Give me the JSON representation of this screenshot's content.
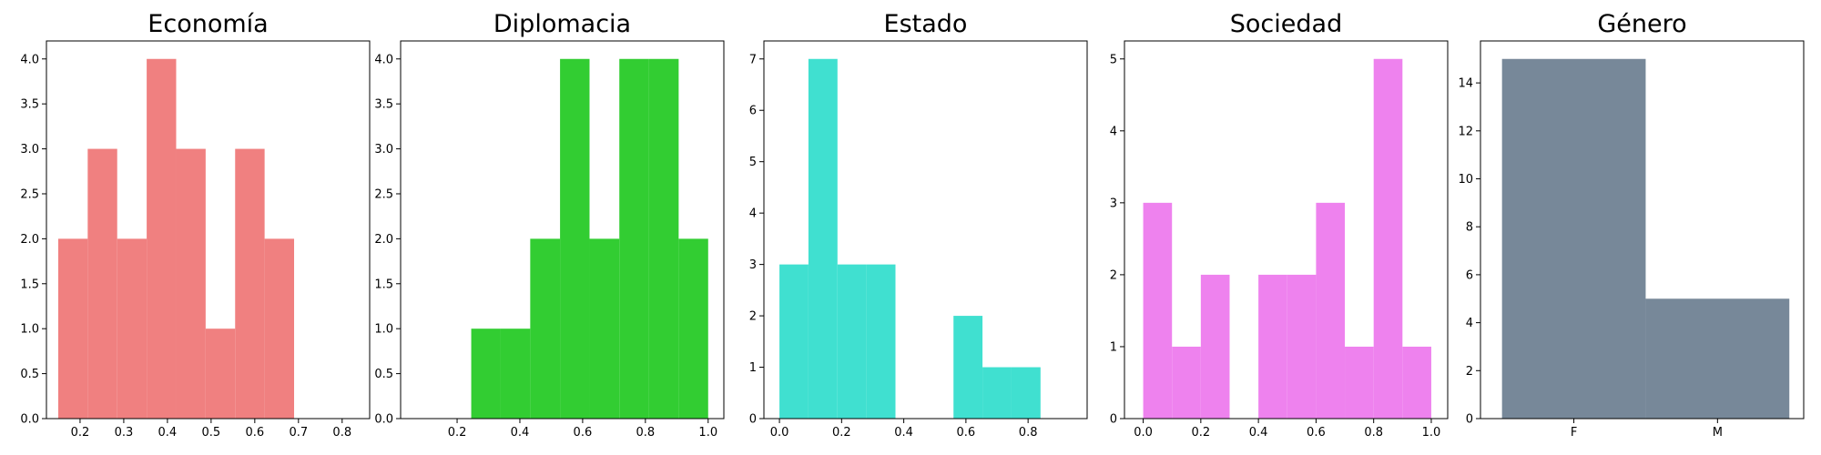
{
  "chart_data": [
    {
      "type": "histogram",
      "title": "Economía",
      "color": "#f08080",
      "bins": [
        0.15,
        0.2175,
        0.285,
        0.3525,
        0.42,
        0.4875,
        0.555,
        0.6225,
        0.69
      ],
      "values": [
        2,
        3,
        2,
        4,
        3,
        1,
        3,
        2
      ],
      "xlim": [
        0.123,
        0.863
      ],
      "xticks": [
        0.2,
        0.3,
        0.4,
        0.5,
        0.6,
        0.7,
        0.8
      ],
      "ylim": [
        0,
        4.2
      ],
      "yticks": [
        {
          "value": 0,
          "label": "0.0"
        },
        0.5,
        {
          "value": 1,
          "label": "1.0"
        },
        1.5,
        {
          "value": 2,
          "label": "2.0"
        },
        2.5,
        {
          "value": 3,
          "label": "3.0"
        },
        3.5,
        {
          "value": 4,
          "label": "4.0"
        }
      ]
    },
    {
      "type": "histogram",
      "title": "Diplomacia",
      "color": "#32cd32",
      "bins": [
        0.245,
        0.339,
        0.433,
        0.528,
        0.622,
        0.717,
        0.811,
        0.906,
        1.0
      ],
      "values": [
        1,
        1,
        2,
        4,
        2,
        4,
        4,
        2
      ],
      "xlim": [
        0.02,
        1.05
      ],
      "xticks": [
        0.2,
        0.4,
        0.6,
        0.8,
        {
          "value": 1,
          "label": "1.0"
        }
      ],
      "ylim": [
        0,
        4.2
      ],
      "yticks": [
        {
          "value": 0,
          "label": "0.0"
        },
        0.5,
        {
          "value": 1,
          "label": "1.0"
        },
        1.5,
        {
          "value": 2,
          "label": "2.0"
        },
        2.5,
        {
          "value": 3,
          "label": "3.0"
        },
        3.5,
        {
          "value": 4,
          "label": "4.0"
        }
      ]
    },
    {
      "type": "histogram",
      "title": "Estado",
      "color": "#40e0d0",
      "bins": [
        0,
        0.0933,
        0.1867,
        0.28,
        0.3733,
        0.4667,
        0.56,
        0.6533,
        0.7467,
        0.84
      ],
      "values": [
        3,
        7,
        3,
        3,
        0,
        0,
        2,
        1,
        1
      ],
      "xlim": [
        -0.05,
        0.99
      ],
      "xticks": [
        {
          "value": 0,
          "label": "0.0"
        },
        0.2,
        0.4,
        0.6,
        0.8
      ],
      "ylim": [
        0,
        7.35
      ],
      "yticks": [
        0,
        1,
        2,
        3,
        4,
        5,
        6,
        7
      ]
    },
    {
      "type": "histogram",
      "title": "Sociedad",
      "color": "#ee82ee",
      "bins": [
        0,
        0.1,
        0.2,
        0.3,
        0.4,
        0.5,
        0.6,
        0.7,
        0.8,
        0.9,
        1.0
      ],
      "values": [
        3,
        1,
        2,
        0,
        2,
        2,
        3,
        1,
        5,
        1
      ],
      "xlim": [
        -0.065,
        1.057
      ],
      "xticks": [
        {
          "value": 0,
          "label": "0.0"
        },
        0.2,
        0.4,
        0.6,
        0.8,
        {
          "value": 1,
          "label": "1.0"
        }
      ],
      "ylim": [
        0,
        5.25
      ],
      "yticks": [
        0,
        1,
        2,
        3,
        4,
        5
      ]
    },
    {
      "type": "bar",
      "title": "Género",
      "color": "#778899",
      "categories": [
        "F",
        "M"
      ],
      "values": [
        15,
        5
      ],
      "xlim": [
        -0.65,
        1.6
      ],
      "ylim": [
        0,
        15.75
      ],
      "yticks": [
        0,
        2,
        4,
        6,
        8,
        10,
        12,
        14
      ]
    }
  ]
}
